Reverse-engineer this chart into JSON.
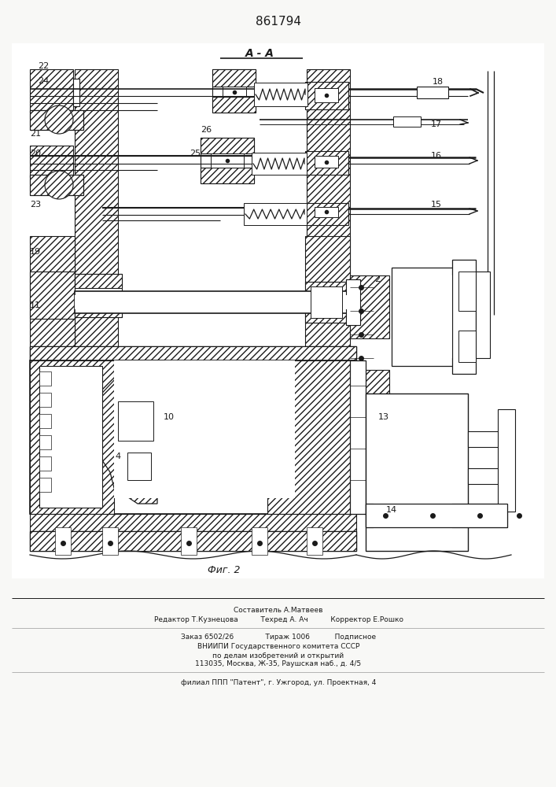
{
  "patent_number": "861794",
  "section_label": "A - A",
  "fig_label": "Фиг. 2",
  "bg": "#f8f8f6",
  "lc": "#1a1a1a",
  "footer": [
    "Составитель А.Матвеев",
    "Редактор Т.Кузнецова          Техред А. Ач          Корректор Е.Рошко",
    "Заказ 6502/26              Тираж 1006           Подписное",
    "ВНИИПИ Государственного комитета СССР",
    "по делам изобретений и открытий",
    "113035, Москва, Ж-35, Раушская наб., д. 4/5",
    "филиал ППП \"Патент\", г. Ужгород, ул. Проектная, 4"
  ]
}
